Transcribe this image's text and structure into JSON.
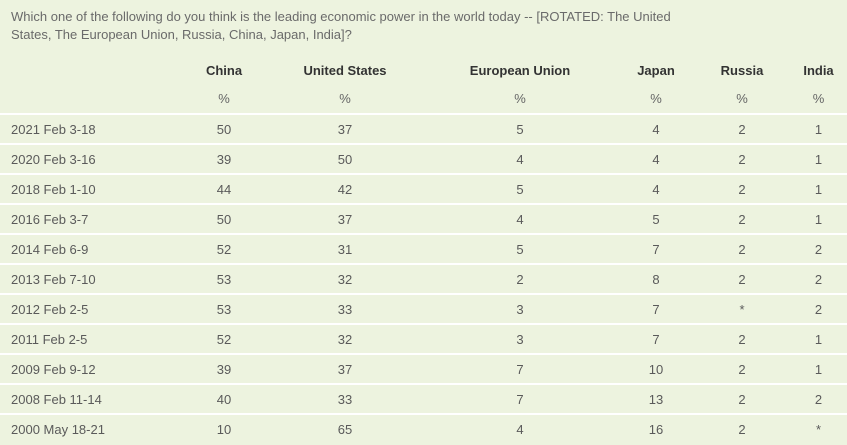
{
  "question": "Which one of the following do you think is the leading economic power in the world today -- [ROTATED: The United States, The European Union, Russia, China, Japan, India]?",
  "columns": [
    "China",
    "United States",
    "European Union",
    "Japan",
    "Russia",
    "India"
  ],
  "units": [
    "%",
    "%",
    "%",
    "%",
    "%",
    "%"
  ],
  "rows": [
    {
      "date": "2021 Feb 3-18",
      "values": [
        "50",
        "37",
        "5",
        "4",
        "2",
        "1"
      ]
    },
    {
      "date": "2020 Feb 3-16",
      "values": [
        "39",
        "50",
        "4",
        "4",
        "2",
        "1"
      ]
    },
    {
      "date": "2018 Feb 1-10",
      "values": [
        "44",
        "42",
        "5",
        "4",
        "2",
        "1"
      ]
    },
    {
      "date": "2016 Feb 3-7",
      "values": [
        "50",
        "37",
        "4",
        "5",
        "2",
        "1"
      ]
    },
    {
      "date": "2014 Feb 6-9",
      "values": [
        "52",
        "31",
        "5",
        "7",
        "2",
        "2"
      ]
    },
    {
      "date": "2013 Feb 7-10",
      "values": [
        "53",
        "32",
        "2",
        "8",
        "2",
        "2"
      ]
    },
    {
      "date": "2012 Feb 2-5",
      "values": [
        "53",
        "33",
        "3",
        "7",
        "*",
        "2"
      ]
    },
    {
      "date": "2011 Feb 2-5",
      "values": [
        "52",
        "32",
        "3",
        "7",
        "2",
        "1"
      ]
    },
    {
      "date": "2009 Feb 9-12",
      "values": [
        "39",
        "37",
        "7",
        "10",
        "2",
        "1"
      ]
    },
    {
      "date": "2008 Feb 11-14",
      "values": [
        "40",
        "33",
        "7",
        "13",
        "2",
        "2"
      ]
    },
    {
      "date": "2000 May 18-21",
      "values": [
        "10",
        "65",
        "4",
        "16",
        "2",
        "*"
      ]
    }
  ]
}
